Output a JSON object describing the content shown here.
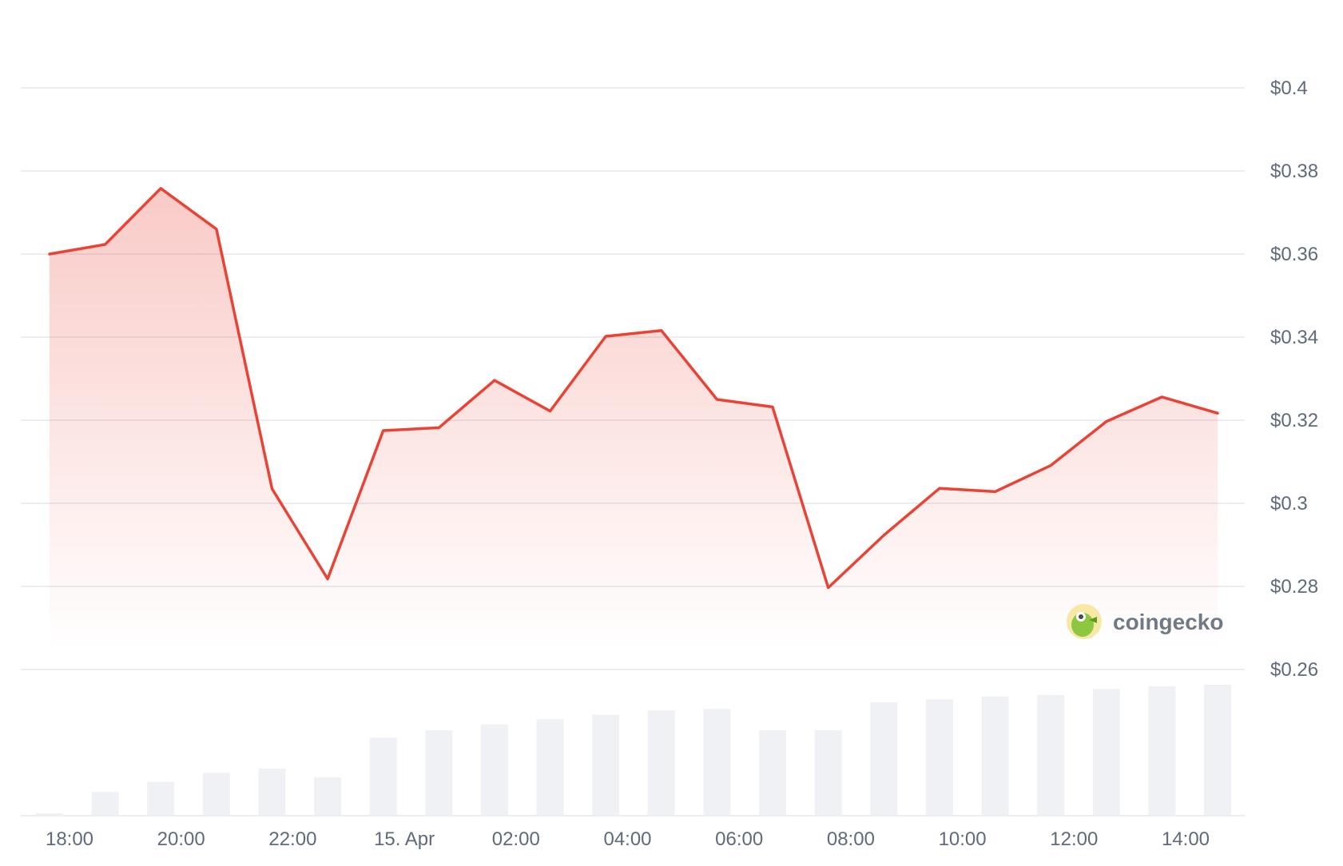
{
  "chart_data": {
    "type": "area",
    "title": "",
    "xlabel": "",
    "ylabel": "",
    "x_ticks": [
      "18:00",
      "20:00",
      "22:00",
      "15. Apr",
      "02:00",
      "04:00",
      "06:00",
      "08:00",
      "10:00",
      "12:00",
      "14:00"
    ],
    "y_ticks": [
      "$0.26",
      "$0.28",
      "$0.3",
      "$0.32",
      "$0.34",
      "$0.36",
      "$0.38",
      "$0.4"
    ],
    "ylim": [
      0.26,
      0.4
    ],
    "grid": true,
    "colors": {
      "line": "#ea4335",
      "area": "#ea4335",
      "volume": "#eff1f5",
      "grid": "#ebedf0"
    },
    "series": [
      {
        "values": [
          0.36,
          0.3623,
          0.3758,
          0.366,
          0.3035,
          0.2818,
          0.3175,
          0.3182,
          0.3296,
          0.3222,
          0.3402,
          0.3416,
          0.325,
          0.3232,
          0.2797,
          0.2923,
          0.3036,
          0.3028,
          0.3091,
          0.3197,
          0.3256,
          0.3217
        ]
      }
    ],
    "volume": [
      0.015,
      0.16,
      0.23,
      0.29,
      0.32,
      0.26,
      0.53,
      0.58,
      0.62,
      0.655,
      0.685,
      0.715,
      0.725,
      0.58,
      0.58,
      0.77,
      0.79,
      0.81,
      0.82,
      0.86,
      0.88,
      0.89
    ]
  },
  "watermark": {
    "text": "coingecko",
    "icon": "coingecko-logo-icon"
  }
}
